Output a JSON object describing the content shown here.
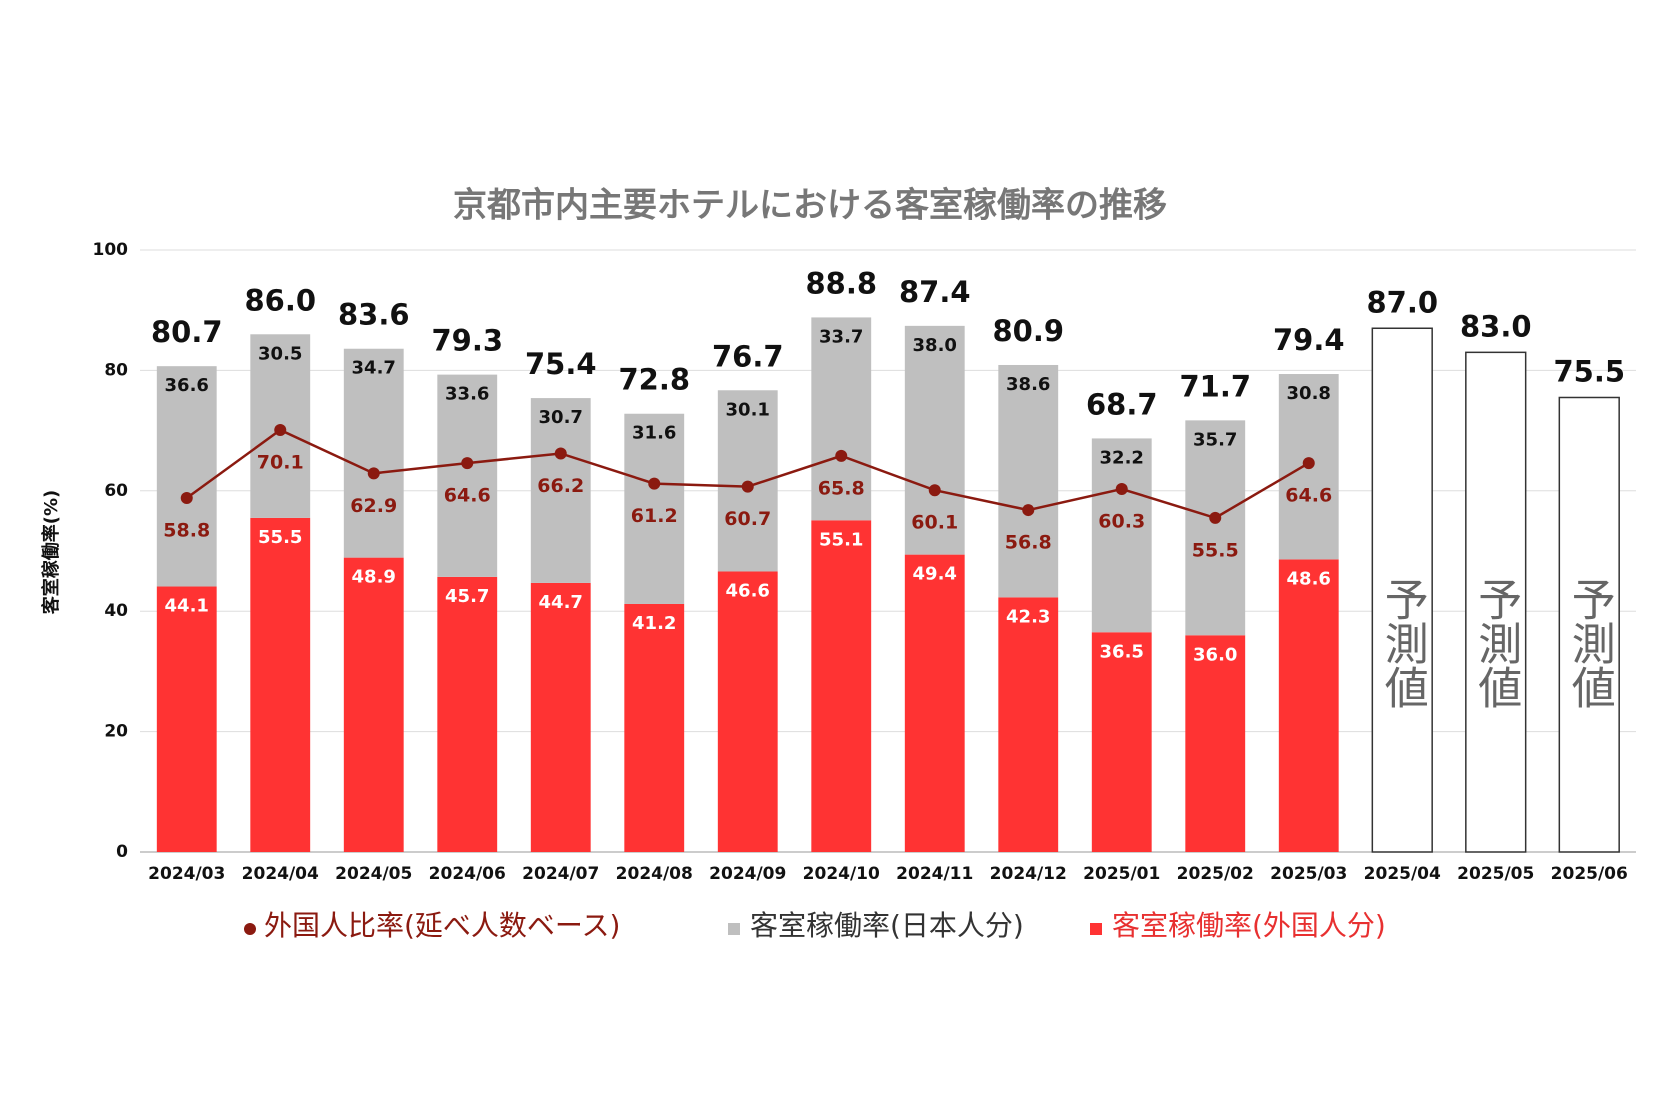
{
  "chart_data": {
    "type": "bar",
    "title": "京都市内主要ホテルにおける客室稼働率の推移",
    "y_label": "客室稼働率(%)",
    "categories": [
      "2024/03",
      "2024/04",
      "2024/05",
      "2024/06",
      "2024/07",
      "2024/08",
      "2024/09",
      "2024/10",
      "2024/11",
      "2024/12",
      "2025/01",
      "2025/02",
      "2025/03",
      "2025/04",
      "2025/05",
      "2025/06"
    ],
    "series": [
      {
        "name": "外国人比率(延べ人数ベース)",
        "type": "line",
        "color": "#8b1a10",
        "legend_color": "#8b1a10",
        "values": [
          58.8,
          70.1,
          62.9,
          64.6,
          66.2,
          61.2,
          60.7,
          65.8,
          60.1,
          56.8,
          60.3,
          55.5,
          64.6,
          null,
          null,
          null
        ]
      },
      {
        "name": "客室稼働率(日本人分)",
        "type": "bar",
        "color": "#bfbfbf",
        "legend_color": "#333333",
        "values": [
          36.6,
          30.5,
          34.7,
          33.6,
          30.7,
          31.6,
          30.1,
          33.7,
          38.0,
          38.6,
          32.2,
          35.7,
          30.8,
          null,
          null,
          null
        ],
        "value_labels": [
          "36.6",
          "30.5",
          "34.7",
          "33.6",
          "30.7",
          "31.6",
          "30.1",
          "33.7",
          "38.0",
          "38.6",
          "32.2",
          "35.7",
          "30.8",
          null,
          null,
          null
        ]
      },
      {
        "name": "客室稼働率(外国人分)",
        "type": "bar",
        "color": "#ff3333",
        "legend_color": "#e83030",
        "values": [
          44.1,
          55.5,
          48.9,
          45.7,
          44.7,
          41.2,
          46.6,
          55.1,
          49.4,
          42.3,
          36.5,
          36.0,
          48.6,
          null,
          null,
          null
        ],
        "value_labels": [
          "44.1",
          "55.5",
          "48.9",
          "45.7",
          "44.7",
          "41.2",
          "46.6",
          "55.1",
          "49.4",
          "42.3",
          "36.5",
          "36.0",
          "48.6",
          null,
          null,
          null
        ]
      }
    ],
    "total_labels": [
      "80.7",
      "86.0",
      "83.6",
      "79.3",
      "75.4",
      "72.8",
      "76.7",
      "88.8",
      "87.4",
      "80.9",
      "68.7",
      "71.7",
      "79.4",
      null,
      null,
      null
    ],
    "forecast": {
      "label": "予測値",
      "values": [
        null,
        null,
        null,
        null,
        null,
        null,
        null,
        null,
        null,
        null,
        null,
        null,
        null,
        87.0,
        83.0,
        75.5
      ],
      "value_labels": [
        null,
        null,
        null,
        null,
        null,
        null,
        null,
        null,
        null,
        null,
        null,
        null,
        null,
        "87.0",
        "83.0",
        "75.5"
      ]
    },
    "ylim": [
      0,
      100
    ],
    "yticks": [
      0,
      20,
      40,
      60,
      80,
      100
    ],
    "grid": true
  }
}
